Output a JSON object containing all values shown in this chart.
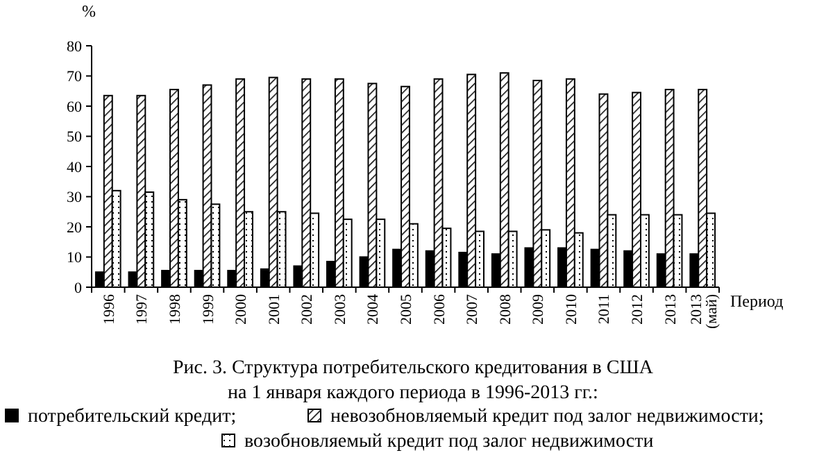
{
  "chart_data": {
    "type": "bar",
    "title": "Рис. 3. Структура потребительского кредитования в США\nна 1 января каждого периода в 1996-2013 гг.:",
    "ylabel": "%",
    "xlabel": "Период",
    "categories": [
      "1996",
      "1997",
      "1998",
      "1999",
      "2000",
      "2001",
      "2002",
      "2003",
      "2004",
      "2005",
      "2006",
      "2007",
      "2008",
      "2009",
      "2010",
      "2011",
      "2012",
      "2013",
      "2013 (май)"
    ],
    "series": [
      {
        "name": "потребительский кредит;",
        "color": "#000000",
        "values": [
          5,
          5,
          5.5,
          5.5,
          5.5,
          6,
          7,
          8.5,
          10,
          12.5,
          12,
          11.5,
          11,
          13,
          13,
          12.5,
          12,
          11,
          11
        ]
      },
      {
        "name": "невозобновляемый кредит под залог недвижимости;",
        "color": "#000000",
        "values": [
          63.5,
          63.5,
          65.5,
          67,
          69,
          69.5,
          69,
          69,
          67.5,
          66.5,
          69,
          70.5,
          71,
          68.5,
          69,
          64,
          64.5,
          65.5,
          65.5
        ]
      },
      {
        "name": "возобновляемый кредит под залог недвижимости",
        "color": "#000000",
        "values": [
          32,
          31.5,
          29,
          27.5,
          25,
          25,
          24.5,
          22.5,
          22.5,
          21,
          19.5,
          18.5,
          18.5,
          19,
          18,
          24,
          24,
          24,
          24.5
        ]
      }
    ],
    "ylim": [
      0,
      80
    ],
    "yticks": [
      0,
      10,
      20,
      30,
      40,
      50,
      60,
      70,
      80
    ],
    "legend": "bottom"
  }
}
